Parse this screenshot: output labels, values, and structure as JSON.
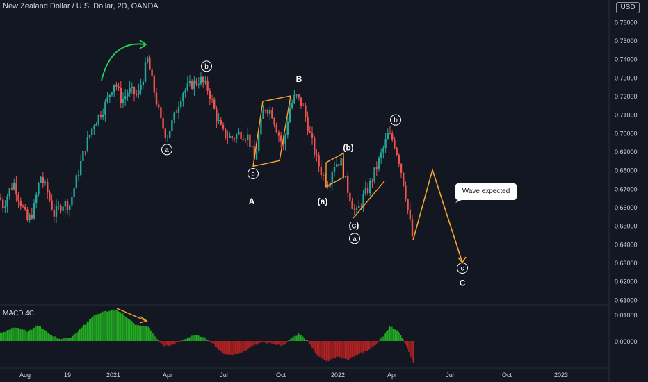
{
  "header": {
    "title": "New Zealand Dollar / U.S. Dollar, 2D, OANDA",
    "currency": "USD"
  },
  "macd": {
    "title": "MACD 4C",
    "ticks": [
      {
        "label": "0.01000",
        "value": 0.01
      },
      {
        "label": "0.00000",
        "value": 0.0
      }
    ]
  },
  "callout": {
    "text": "Wave expected"
  },
  "colors": {
    "background": "#131722",
    "up": "#26a69a",
    "down": "#ef5350",
    "macd_up": "#22ab22",
    "macd_down": "#b22222",
    "annotation": "#f7a531",
    "arrow_green": "#21d45b"
  },
  "chart_data": {
    "type": "candlestick",
    "title": "New Zealand Dollar / U.S. Dollar, 2D, OANDA",
    "x_ticks": [
      "Aug",
      "19",
      "2021",
      "Apr",
      "Jul",
      "Oct",
      "2022",
      "Apr",
      "Jul",
      "Oct",
      "2023"
    ],
    "y_ticks": [
      "0.76000",
      "0.75000",
      "0.74000",
      "0.73000",
      "0.72000",
      "0.71000",
      "0.70000",
      "0.69000",
      "0.68000",
      "0.67000",
      "0.66000",
      "0.65000",
      "0.64000",
      "0.63000",
      "0.62000",
      "0.61000"
    ],
    "ylim": [
      0.6075,
      0.768
    ],
    "price_path": [
      {
        "x": 0,
        "y": 0.665
      },
      {
        "x": 5,
        "y": 0.66
      },
      {
        "x": 12,
        "y": 0.668
      },
      {
        "x": 20,
        "y": 0.673
      },
      {
        "x": 30,
        "y": 0.662
      },
      {
        "x": 40,
        "y": 0.652
      },
      {
        "x": 48,
        "y": 0.658
      },
      {
        "x": 58,
        "y": 0.677
      },
      {
        "x": 68,
        "y": 0.668
      },
      {
        "x": 78,
        "y": 0.656
      },
      {
        "x": 90,
        "y": 0.662
      },
      {
        "x": 100,
        "y": 0.661
      },
      {
        "x": 110,
        "y": 0.675
      },
      {
        "x": 122,
        "y": 0.692
      },
      {
        "x": 135,
        "y": 0.705
      },
      {
        "x": 150,
        "y": 0.714
      },
      {
        "x": 165,
        "y": 0.728
      },
      {
        "x": 175,
        "y": 0.717
      },
      {
        "x": 185,
        "y": 0.723
      },
      {
        "x": 198,
        "y": 0.72
      },
      {
        "x": 205,
        "y": 0.729
      },
      {
        "x": 212,
        "y": 0.74
      },
      {
        "x": 222,
        "y": 0.722
      },
      {
        "x": 232,
        "y": 0.705
      },
      {
        "x": 240,
        "y": 0.698
      },
      {
        "x": 250,
        "y": 0.708
      },
      {
        "x": 262,
        "y": 0.722
      },
      {
        "x": 275,
        "y": 0.726
      },
      {
        "x": 288,
        "y": 0.729
      },
      {
        "x": 300,
        "y": 0.723
      },
      {
        "x": 310,
        "y": 0.71
      },
      {
        "x": 320,
        "y": 0.7
      },
      {
        "x": 333,
        "y": 0.697
      },
      {
        "x": 345,
        "y": 0.7
      },
      {
        "x": 357,
        "y": 0.698
      },
      {
        "x": 366,
        "y": 0.685
      },
      {
        "x": 372,
        "y": 0.698
      },
      {
        "x": 380,
        "y": 0.714
      },
      {
        "x": 390,
        "y": 0.712
      },
      {
        "x": 400,
        "y": 0.7
      },
      {
        "x": 408,
        "y": 0.692
      },
      {
        "x": 416,
        "y": 0.713
      },
      {
        "x": 425,
        "y": 0.72
      },
      {
        "x": 435,
        "y": 0.715
      },
      {
        "x": 445,
        "y": 0.7
      },
      {
        "x": 455,
        "y": 0.686
      },
      {
        "x": 465,
        "y": 0.676
      },
      {
        "x": 472,
        "y": 0.673
      },
      {
        "x": 480,
        "y": 0.683
      },
      {
        "x": 490,
        "y": 0.685
      },
      {
        "x": 498,
        "y": 0.672
      },
      {
        "x": 506,
        "y": 0.662
      },
      {
        "x": 512,
        "y": 0.656
      },
      {
        "x": 522,
        "y": 0.665
      },
      {
        "x": 530,
        "y": 0.67
      },
      {
        "x": 540,
        "y": 0.68
      },
      {
        "x": 550,
        "y": 0.69
      },
      {
        "x": 558,
        "y": 0.699
      },
      {
        "x": 566,
        "y": 0.696
      },
      {
        "x": 574,
        "y": 0.685
      },
      {
        "x": 582,
        "y": 0.67
      },
      {
        "x": 588,
        "y": 0.655
      },
      {
        "x": 594,
        "y": 0.642
      }
    ],
    "projection": [
      {
        "x": 594,
        "y": 0.642
      },
      {
        "x": 622,
        "y": 0.68
      },
      {
        "x": 665,
        "y": 0.63
      }
    ],
    "wave_labels": [
      {
        "text": "b",
        "circled": true,
        "x": 297,
        "y": 0.736
      },
      {
        "text": "a",
        "circled": true,
        "x": 240,
        "y": 0.691
      },
      {
        "text": "c",
        "circled": true,
        "x": 364,
        "y": 0.678
      },
      {
        "text": "A",
        "circled": false,
        "x": 362,
        "y": 0.663
      },
      {
        "text": "B",
        "circled": false,
        "x": 430,
        "y": 0.729
      },
      {
        "text": "(b)",
        "circled": false,
        "x": 501,
        "y": 0.692
      },
      {
        "text": "(a)",
        "circled": false,
        "x": 464,
        "y": 0.663
      },
      {
        "text": "(c)",
        "circled": false,
        "x": 509,
        "y": 0.65
      },
      {
        "text": "a",
        "circled": true,
        "x": 510,
        "y": 0.643
      },
      {
        "text": "b",
        "circled": true,
        "x": 569,
        "y": 0.707
      },
      {
        "text": "c",
        "circled": true,
        "x": 665,
        "y": 0.627
      },
      {
        "text": "C",
        "circled": false,
        "x": 665,
        "y": 0.619
      }
    ],
    "channels": [
      {
        "points": [
          {
            "x": 378,
            "y": 0.717
          },
          {
            "x": 418,
            "y": 0.72
          },
          {
            "x": 402,
            "y": 0.685
          },
          {
            "x": 364,
            "y": 0.682
          }
        ]
      },
      {
        "points": [
          {
            "x": 469,
            "y": 0.684
          },
          {
            "x": 494,
            "y": 0.689
          },
          {
            "x": 494,
            "y": 0.676
          },
          {
            "x": 469,
            "y": 0.671
          }
        ]
      }
    ],
    "trend_lines": [
      {
        "from": {
          "x": 508,
          "y": 0.654
        },
        "to": {
          "x": 553,
          "y": 0.674
        }
      }
    ],
    "macd_histogram": [
      {
        "x": 0,
        "v": 0.003
      },
      {
        "x": 20,
        "v": 0.0052
      },
      {
        "x": 40,
        "v": 0.0036
      },
      {
        "x": 55,
        "v": 0.006
      },
      {
        "x": 70,
        "v": 0.0026
      },
      {
        "x": 85,
        "v": 0.0008
      },
      {
        "x": 100,
        "v": 0.0012
      },
      {
        "x": 115,
        "v": 0.0046
      },
      {
        "x": 135,
        "v": 0.0098
      },
      {
        "x": 150,
        "v": 0.0112
      },
      {
        "x": 168,
        "v": 0.0118
      },
      {
        "x": 180,
        "v": 0.0094
      },
      {
        "x": 195,
        "v": 0.006
      },
      {
        "x": 212,
        "v": 0.0055
      },
      {
        "x": 225,
        "v": 0.001
      },
      {
        "x": 235,
        "v": -0.0022
      },
      {
        "x": 250,
        "v": -0.001
      },
      {
        "x": 265,
        "v": 0.0008
      },
      {
        "x": 280,
        "v": 0.0024
      },
      {
        "x": 292,
        "v": 0.0016
      },
      {
        "x": 305,
        "v": -0.001
      },
      {
        "x": 320,
        "v": -0.0048
      },
      {
        "x": 335,
        "v": -0.0052
      },
      {
        "x": 350,
        "v": -0.004
      },
      {
        "x": 362,
        "v": -0.002
      },
      {
        "x": 375,
        "v": -0.0004
      },
      {
        "x": 390,
        "v": -0.001
      },
      {
        "x": 405,
        "v": -0.0018
      },
      {
        "x": 420,
        "v": 0.0012
      },
      {
        "x": 430,
        "v": 0.0028
      },
      {
        "x": 442,
        "v": 0.0
      },
      {
        "x": 455,
        "v": -0.0052
      },
      {
        "x": 470,
        "v": -0.0078
      },
      {
        "x": 485,
        "v": -0.006
      },
      {
        "x": 500,
        "v": -0.007
      },
      {
        "x": 515,
        "v": -0.005
      },
      {
        "x": 530,
        "v": -0.0034
      },
      {
        "x": 545,
        "v": 0.0
      },
      {
        "x": 560,
        "v": 0.0055
      },
      {
        "x": 572,
        "v": 0.004
      },
      {
        "x": 584,
        "v": -0.002
      },
      {
        "x": 594,
        "v": -0.0088
      }
    ]
  }
}
